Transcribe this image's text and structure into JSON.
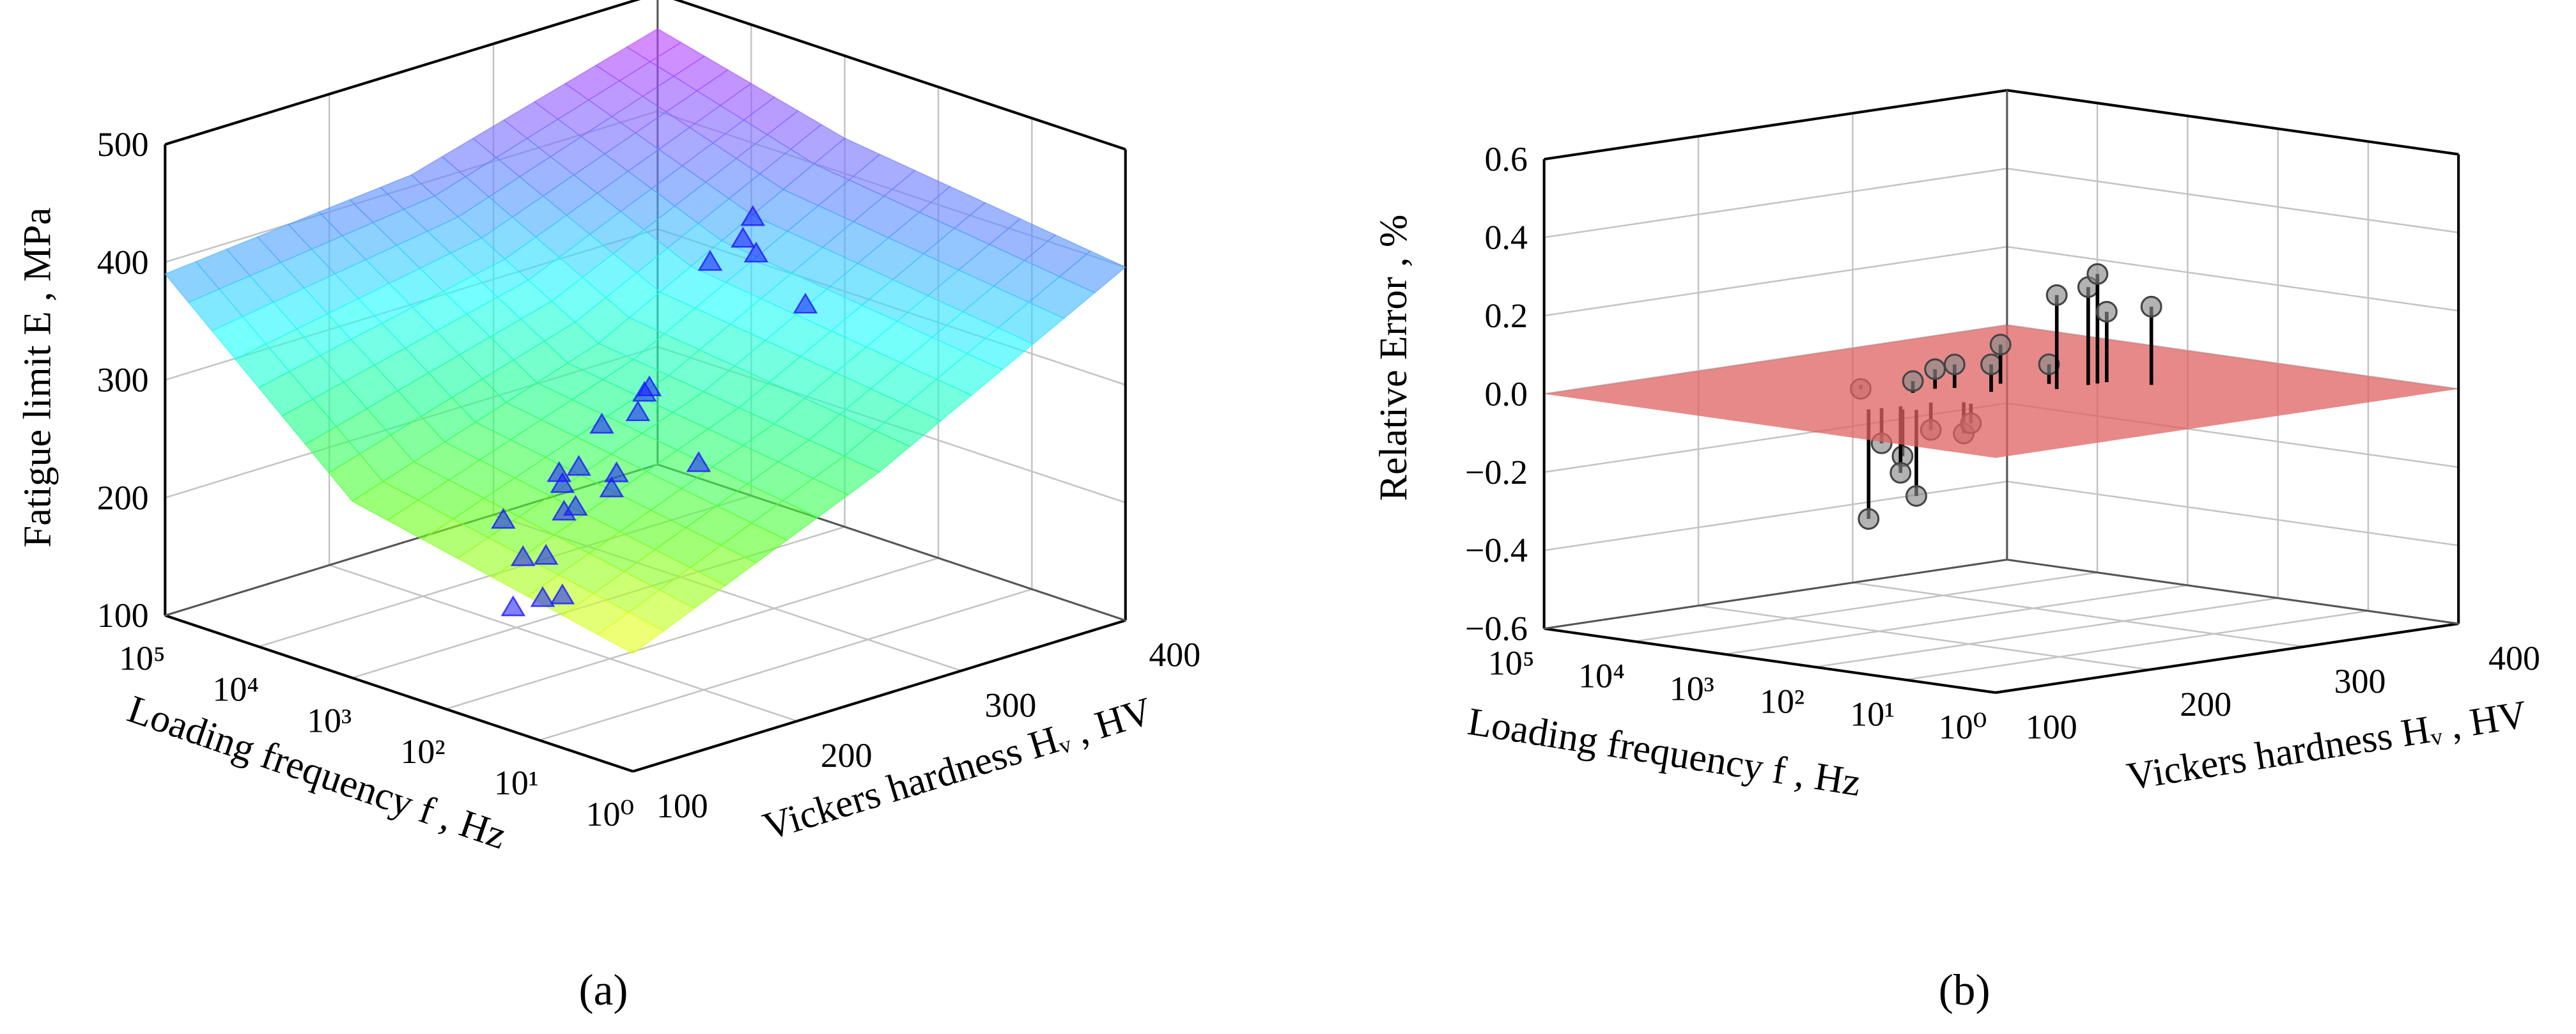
{
  "chart_data": [
    {
      "type": "surface3d",
      "panel": "(a)",
      "xlabel": "Vickers hardness Hᵥ , HV",
      "ylabel": "Loading frequency f , Hz",
      "zlabel": "Fatigue limit E , MPa",
      "xlim": [
        100,
        400
      ],
      "xticks": [
        100,
        200,
        300,
        400
      ],
      "ylim": [
        1,
        100000
      ],
      "yscale": "log",
      "yticks": [
        {
          "value": 1,
          "label": "10⁰"
        },
        {
          "value": 10,
          "label": "10¹"
        },
        {
          "value": 100,
          "label": "10²"
        },
        {
          "value": 1000,
          "label": "10³"
        },
        {
          "value": 10000,
          "label": "10⁴"
        },
        {
          "value": 100000,
          "label": "10⁵"
        }
      ],
      "zlim": [
        100,
        500
      ],
      "zticks": [
        100,
        200,
        300,
        400,
        500
      ],
      "grid": true,
      "surface": {
        "x": [
          100,
          250,
          400
        ],
        "y": [
          1,
          1000,
          100000
        ],
        "z": [
          [
            200,
            290,
            400
          ],
          [
            250,
            320,
            430
          ],
          [
            390,
            410,
            470
          ]
        ],
        "colormap": [
          "#ff1a2e",
          "#ff9a1a",
          "#ffff20",
          "#60ff20",
          "#20ff90",
          "#20ffff",
          "#5a90ff",
          "#a050ff",
          "#ff30ff"
        ],
        "opacity": 0.62
      },
      "points": {
        "x": [
          198,
          159,
          114,
          204,
          161,
          249,
          229,
          179,
          285,
          226,
          181,
          144,
          318,
          252,
          217,
          278,
          167,
          254,
          318,
          281,
          344,
          289,
          376
        ],
        "y": [
          1000,
          100,
          10,
          1000,
          100,
          10000,
          1000,
          100,
          10000,
          1000,
          100,
          10,
          10000,
          1000,
          100,
          1000,
          10,
          100,
          1000,
          100,
          1000,
          100,
          1000
        ],
        "z": [
          117,
          168,
          216,
          157,
          203,
          143,
          185,
          237,
          158,
          219,
          270,
          294,
          153,
          249,
          301,
          265,
          370,
          242,
          359,
          421,
          386,
          405,
          298
        ],
        "color": "#1a1aff"
      }
    },
    {
      "type": "stem3d",
      "panel": "(b)",
      "xlabel": "Vickers hardness Hᵥ , HV",
      "ylabel": "Loading frequency f , Hz",
      "zlabel": "Relative Error , %",
      "xlim": [
        100,
        400
      ],
      "xticks": [
        100,
        200,
        300,
        400
      ],
      "ylim": [
        1,
        100000
      ],
      "yscale": "log",
      "yticks": [
        {
          "value": 1,
          "label": "10⁰"
        },
        {
          "value": 10,
          "label": "10¹"
        },
        {
          "value": 100,
          "label": "10²"
        },
        {
          "value": 1000,
          "label": "10³"
        },
        {
          "value": 10000,
          "label": "10⁴"
        },
        {
          "value": 100000,
          "label": "10⁵"
        }
      ],
      "zlim": [
        -0.6,
        0.6
      ],
      "zticks": [
        {
          "value": -0.6,
          "label": "−0.6"
        },
        {
          "value": -0.4,
          "label": "−0.4"
        },
        {
          "value": -0.2,
          "label": "−0.2"
        },
        {
          "value": 0,
          "label": "0.0"
        },
        0.2,
        0.4,
        0.6
      ],
      "grid": true,
      "plane": {
        "z": 0,
        "color": "#e06262"
      },
      "points": {
        "x": [
          220,
          168,
          175,
          179,
          185,
          182,
          219,
          235,
          203,
          243,
          214,
          213,
          246,
          267,
          282,
          273,
          292,
          298,
          304,
          312
        ],
        "y": [
          3500,
          370,
          350,
          240,
          320,
          190,
          890,
          950,
          300,
          790,
          200,
          160,
          350,
          630,
          330,
          190,
          180,
          180,
          180,
          79
        ],
        "z": [
          -0.01,
          -0.28,
          -0.09,
          -0.12,
          -0.17,
          -0.22,
          0.03,
          0.05,
          -0.07,
          0.06,
          -0.08,
          -0.05,
          0.07,
          0.1,
          0.05,
          0.24,
          0.25,
          0.28,
          0.18,
          0.2
        ],
        "color": "#8a8a8a",
        "stem_color": "#000000"
      }
    }
  ]
}
